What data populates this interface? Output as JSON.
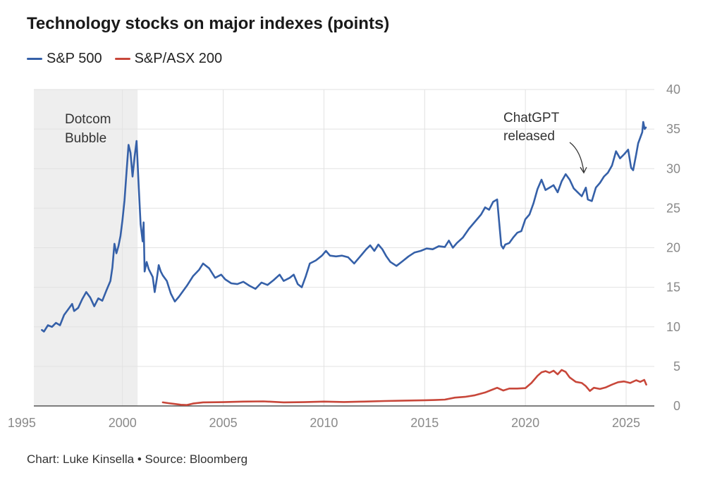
{
  "title": "Technology stocks on major indexes (points)",
  "source": "Chart: Luke Kinsella • Source: Bloomberg",
  "chart_data": {
    "type": "line",
    "title": "Technology stocks on major indexes (points)",
    "xlabel": "",
    "ylabel": "",
    "xlim": [
      1995.6,
      2026.4
    ],
    "ylim": [
      0,
      40
    ],
    "x_ticks": [
      1995,
      2000,
      2005,
      2010,
      2015,
      2020,
      2025
    ],
    "y_ticks": [
      0,
      5,
      10,
      15,
      20,
      25,
      30,
      35,
      40
    ],
    "grid": true,
    "legend_position": "top-left",
    "annotations": {
      "shaded_region": {
        "label_line1": "Dotcom",
        "label_line2": "Bubble",
        "x_start": 1995.6,
        "x_end": 2000.75
      },
      "callout": {
        "line1": "ChatGPT",
        "line2": "released",
        "x": 2022.9,
        "y": 29.2
      }
    },
    "series": [
      {
        "name": "S&P 500",
        "color": "#3560a8",
        "points": [
          [
            1996.0,
            9.6
          ],
          [
            1996.1,
            9.4
          ],
          [
            1996.3,
            10.2
          ],
          [
            1996.5,
            10.0
          ],
          [
            1996.7,
            10.5
          ],
          [
            1996.9,
            10.2
          ],
          [
            1997.1,
            11.5
          ],
          [
            1997.3,
            12.2
          ],
          [
            1997.5,
            12.9
          ],
          [
            1997.6,
            12.0
          ],
          [
            1997.8,
            12.4
          ],
          [
            1998.0,
            13.5
          ],
          [
            1998.2,
            14.4
          ],
          [
            1998.4,
            13.7
          ],
          [
            1998.6,
            12.6
          ],
          [
            1998.8,
            13.6
          ],
          [
            1999.0,
            13.3
          ],
          [
            1999.2,
            14.6
          ],
          [
            1999.4,
            15.8
          ],
          [
            1999.5,
            17.5
          ],
          [
            1999.6,
            20.5
          ],
          [
            1999.7,
            19.3
          ],
          [
            1999.8,
            20.2
          ],
          [
            1999.9,
            21.5
          ],
          [
            2000.0,
            23.5
          ],
          [
            2000.1,
            26.0
          ],
          [
            2000.2,
            29.5
          ],
          [
            2000.3,
            33.0
          ],
          [
            2000.4,
            32.0
          ],
          [
            2000.5,
            29.0
          ],
          [
            2000.6,
            31.5
          ],
          [
            2000.7,
            33.5
          ],
          [
            2000.8,
            28.0
          ],
          [
            2000.9,
            23.0
          ],
          [
            2001.0,
            20.8
          ],
          [
            2001.05,
            23.2
          ],
          [
            2001.1,
            17.0
          ],
          [
            2001.2,
            18.2
          ],
          [
            2001.3,
            17.3
          ],
          [
            2001.5,
            16.3
          ],
          [
            2001.6,
            14.4
          ],
          [
            2001.7,
            16.0
          ],
          [
            2001.8,
            17.8
          ],
          [
            2001.9,
            17.0
          ],
          [
            2002.0,
            16.5
          ],
          [
            2002.2,
            15.8
          ],
          [
            2002.4,
            14.2
          ],
          [
            2002.6,
            13.2
          ],
          [
            2002.8,
            13.8
          ],
          [
            2003.0,
            14.5
          ],
          [
            2003.2,
            15.2
          ],
          [
            2003.5,
            16.4
          ],
          [
            2003.8,
            17.2
          ],
          [
            2004.0,
            18.0
          ],
          [
            2004.3,
            17.4
          ],
          [
            2004.6,
            16.2
          ],
          [
            2004.9,
            16.6
          ],
          [
            2005.1,
            16.0
          ],
          [
            2005.4,
            15.5
          ],
          [
            2005.7,
            15.4
          ],
          [
            2006.0,
            15.7
          ],
          [
            2006.3,
            15.2
          ],
          [
            2006.6,
            14.8
          ],
          [
            2006.9,
            15.6
          ],
          [
            2007.2,
            15.3
          ],
          [
            2007.5,
            15.9
          ],
          [
            2007.8,
            16.6
          ],
          [
            2008.0,
            15.8
          ],
          [
            2008.3,
            16.2
          ],
          [
            2008.5,
            16.6
          ],
          [
            2008.7,
            15.4
          ],
          [
            2008.9,
            15.0
          ],
          [
            2009.1,
            16.4
          ],
          [
            2009.3,
            18.0
          ],
          [
            2009.6,
            18.4
          ],
          [
            2009.9,
            19.0
          ],
          [
            2010.1,
            19.6
          ],
          [
            2010.3,
            19.0
          ],
          [
            2010.6,
            18.9
          ],
          [
            2010.9,
            19.0
          ],
          [
            2011.2,
            18.8
          ],
          [
            2011.5,
            18.0
          ],
          [
            2011.7,
            18.6
          ],
          [
            2011.9,
            19.2
          ],
          [
            2012.1,
            19.8
          ],
          [
            2012.3,
            20.3
          ],
          [
            2012.5,
            19.6
          ],
          [
            2012.7,
            20.4
          ],
          [
            2012.9,
            19.8
          ],
          [
            2013.1,
            18.9
          ],
          [
            2013.3,
            18.2
          ],
          [
            2013.6,
            17.7
          ],
          [
            2013.9,
            18.3
          ],
          [
            2014.2,
            18.9
          ],
          [
            2014.5,
            19.4
          ],
          [
            2014.8,
            19.6
          ],
          [
            2015.1,
            19.9
          ],
          [
            2015.4,
            19.8
          ],
          [
            2015.7,
            20.2
          ],
          [
            2016.0,
            20.1
          ],
          [
            2016.2,
            20.9
          ],
          [
            2016.4,
            20.0
          ],
          [
            2016.6,
            20.6
          ],
          [
            2016.9,
            21.3
          ],
          [
            2017.2,
            22.4
          ],
          [
            2017.5,
            23.3
          ],
          [
            2017.8,
            24.2
          ],
          [
            2018.0,
            25.1
          ],
          [
            2018.2,
            24.8
          ],
          [
            2018.4,
            25.8
          ],
          [
            2018.6,
            26.1
          ],
          [
            2018.7,
            23.2
          ],
          [
            2018.8,
            20.3
          ],
          [
            2018.9,
            19.9
          ],
          [
            2019.0,
            20.4
          ],
          [
            2019.2,
            20.6
          ],
          [
            2019.4,
            21.3
          ],
          [
            2019.6,
            21.9
          ],
          [
            2019.8,
            22.1
          ],
          [
            2020.0,
            23.6
          ],
          [
            2020.2,
            24.2
          ],
          [
            2020.4,
            25.6
          ],
          [
            2020.6,
            27.4
          ],
          [
            2020.8,
            28.6
          ],
          [
            2021.0,
            27.3
          ],
          [
            2021.2,
            27.6
          ],
          [
            2021.4,
            27.9
          ],
          [
            2021.6,
            27.0
          ],
          [
            2021.8,
            28.4
          ],
          [
            2022.0,
            29.3
          ],
          [
            2022.2,
            28.6
          ],
          [
            2022.4,
            27.5
          ],
          [
            2022.6,
            27.0
          ],
          [
            2022.8,
            26.5
          ],
          [
            2023.0,
            27.6
          ],
          [
            2023.1,
            26.1
          ],
          [
            2023.3,
            25.9
          ],
          [
            2023.5,
            27.6
          ],
          [
            2023.7,
            28.2
          ],
          [
            2023.9,
            29.0
          ],
          [
            2024.1,
            29.5
          ],
          [
            2024.3,
            30.4
          ],
          [
            2024.5,
            32.2
          ],
          [
            2024.7,
            31.3
          ],
          [
            2024.9,
            31.8
          ],
          [
            2025.1,
            32.4
          ],
          [
            2025.25,
            30.1
          ],
          [
            2025.35,
            29.8
          ],
          [
            2025.5,
            31.8
          ],
          [
            2025.6,
            33.2
          ],
          [
            2025.7,
            33.9
          ],
          [
            2025.8,
            34.6
          ],
          [
            2025.85,
            35.9
          ],
          [
            2025.92,
            35.0
          ],
          [
            2025.98,
            35.2
          ]
        ]
      },
      {
        "name": "S&P/ASX 200",
        "color": "#c8473a",
        "points": [
          [
            2002.0,
            0.45
          ],
          [
            2002.3,
            0.35
          ],
          [
            2002.6,
            0.25
          ],
          [
            2002.9,
            0.15
          ],
          [
            2003.2,
            0.12
          ],
          [
            2003.5,
            0.3
          ],
          [
            2004.0,
            0.45
          ],
          [
            2005.0,
            0.48
          ],
          [
            2006.0,
            0.55
          ],
          [
            2007.0,
            0.58
          ],
          [
            2008.0,
            0.45
          ],
          [
            2009.0,
            0.48
          ],
          [
            2010.0,
            0.55
          ],
          [
            2011.0,
            0.5
          ],
          [
            2012.0,
            0.55
          ],
          [
            2013.0,
            0.62
          ],
          [
            2014.0,
            0.68
          ],
          [
            2015.0,
            0.72
          ],
          [
            2015.5,
            0.75
          ],
          [
            2016.0,
            0.8
          ],
          [
            2016.5,
            1.05
          ],
          [
            2017.0,
            1.15
          ],
          [
            2017.5,
            1.35
          ],
          [
            2018.0,
            1.7
          ],
          [
            2018.3,
            2.0
          ],
          [
            2018.6,
            2.3
          ],
          [
            2018.9,
            1.95
          ],
          [
            2019.2,
            2.2
          ],
          [
            2019.6,
            2.2
          ],
          [
            2020.0,
            2.25
          ],
          [
            2020.3,
            2.9
          ],
          [
            2020.6,
            3.8
          ],
          [
            2020.8,
            4.25
          ],
          [
            2021.0,
            4.4
          ],
          [
            2021.2,
            4.2
          ],
          [
            2021.4,
            4.45
          ],
          [
            2021.6,
            4.0
          ],
          [
            2021.8,
            4.55
          ],
          [
            2022.0,
            4.3
          ],
          [
            2022.2,
            3.6
          ],
          [
            2022.5,
            3.05
          ],
          [
            2022.8,
            2.9
          ],
          [
            2023.0,
            2.5
          ],
          [
            2023.2,
            1.9
          ],
          [
            2023.4,
            2.3
          ],
          [
            2023.7,
            2.15
          ],
          [
            2024.0,
            2.35
          ],
          [
            2024.3,
            2.7
          ],
          [
            2024.6,
            3.0
          ],
          [
            2024.9,
            3.1
          ],
          [
            2025.2,
            2.9
          ],
          [
            2025.5,
            3.25
          ],
          [
            2025.7,
            3.05
          ],
          [
            2025.9,
            3.3
          ],
          [
            2026.0,
            2.7
          ]
        ]
      }
    ]
  }
}
